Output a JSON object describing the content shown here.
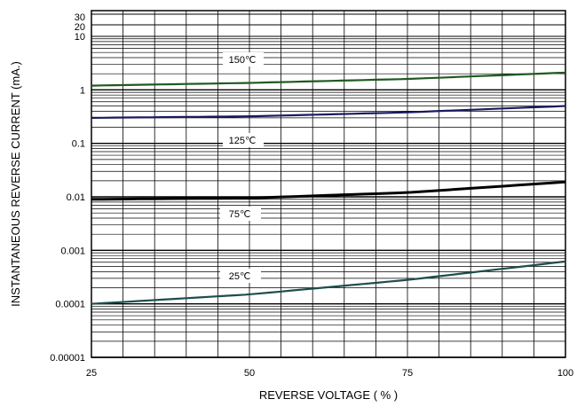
{
  "chart_data": {
    "type": "line",
    "title": "",
    "xlabel": "REVERSE VOLTAGE ( % )",
    "ylabel": "INSTANTANEOUS REVERSE CURRENT (mA.)",
    "xlim": [
      25,
      100
    ],
    "ylim": [
      1e-05,
      30
    ],
    "yscale": "log",
    "grid": true,
    "x_ticks": [
      "25",
      "50",
      "75",
      "100"
    ],
    "y_ticks": [
      "0.00001",
      "0.0001",
      "0.001",
      "0.01",
      "0.1",
      "1",
      "10",
      "20",
      "30"
    ],
    "series": [
      {
        "name": "150℃",
        "color": "#1f5a1f",
        "x": [
          25,
          50,
          75,
          100
        ],
        "y": [
          1.2,
          1.35,
          1.6,
          2.1
        ]
      },
      {
        "name": "125℃",
        "color": "#1a1a5e",
        "x": [
          25,
          50,
          75,
          100
        ],
        "y": [
          0.3,
          0.32,
          0.38,
          0.5
        ]
      },
      {
        "name": "75℃",
        "color": "#000000",
        "x": [
          25,
          50,
          75,
          100
        ],
        "y": [
          0.009,
          0.0095,
          0.012,
          0.019
        ]
      },
      {
        "name": "25℃",
        "color": "#1e4d4d",
        "x": [
          25,
          50,
          75,
          100
        ],
        "y": [
          0.0001,
          0.00015,
          0.00028,
          0.00062
        ]
      }
    ]
  }
}
